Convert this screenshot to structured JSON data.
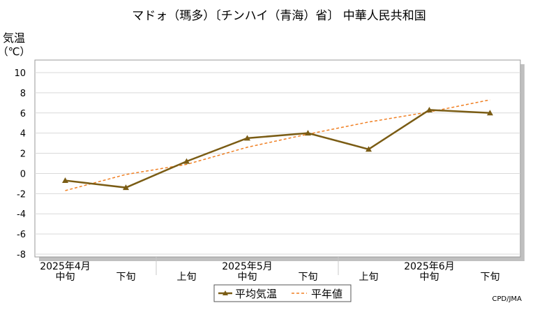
{
  "chart_data": {
    "type": "line",
    "title": "マドォ（瑪多）〔チンハイ（青海）省〕 中華人民共和国",
    "ylabel_line1": "気温",
    "ylabel_line2": "（℃）",
    "ylim": [
      -8,
      10
    ],
    "yticks": [
      10,
      8,
      6,
      4,
      2,
      0,
      -2,
      -4,
      -6,
      -8
    ],
    "x_month_labels": [
      "2025年4月",
      "2025年5月",
      "2025年6月"
    ],
    "categories": [
      "中旬",
      "下旬",
      "上旬",
      "中旬",
      "下旬",
      "上旬",
      "中旬",
      "下旬"
    ],
    "grid": true,
    "legend_position": "bottom-center",
    "series": [
      {
        "name": "平均気温",
        "style": "solid-line-triangle-markers",
        "color": "#7a5c14",
        "values": [
          -0.7,
          -1.4,
          1.2,
          3.5,
          4.0,
          2.4,
          6.3,
          6.0
        ]
      },
      {
        "name": "平年値",
        "style": "dashed-line",
        "color": "#f07f22",
        "values": [
          -1.7,
          -0.1,
          0.9,
          2.6,
          3.9,
          5.1,
          6.1,
          7.3
        ]
      }
    ],
    "credit": "CPD/JMA"
  }
}
